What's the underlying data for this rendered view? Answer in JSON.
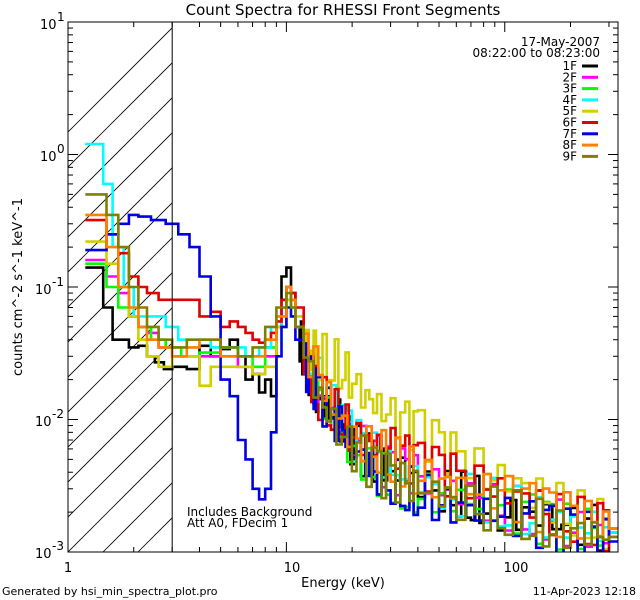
{
  "chart_data": {
    "type": "line",
    "title": "Count Spectra for RHESSI Front Segments",
    "xlabel": "Energy (keV)",
    "ylabel": "counts cm^-2 s^-1 keV^-1",
    "xscale": "log",
    "yscale": "log",
    "xlim": [
      1,
      330
    ],
    "ylim": [
      0.001,
      10
    ],
    "x_tick_labels": [
      "1",
      "10",
      "100"
    ],
    "y_tick_labels": [
      {
        "mantissa": "10",
        "exponent": "1"
      },
      {
        "mantissa": "10",
        "exponent": "0"
      },
      {
        "mantissa": "10",
        "exponent": "-1"
      },
      {
        "mantissa": "10",
        "exponent": "-2"
      },
      {
        "mantissa": "10",
        "exponent": "-3"
      }
    ],
    "hatched_region_keV": [
      1,
      3
    ],
    "annotation_date": "17-May-2007",
    "annotation_time": "08:22:00 to 08:23:00",
    "annotation_note1": "Includes Background",
    "annotation_note2": "Att A0, FDecim 1",
    "series": [
      {
        "name": "1F",
        "color": "#000000",
        "x": [
          1.2,
          1.3,
          1.45,
          1.6,
          1.75,
          1.9,
          2.1,
          2.3,
          2.5,
          2.75,
          3.0,
          3.5,
          4.0,
          4.5,
          5.0,
          5.5,
          6.0,
          6.5,
          7.0,
          7.5,
          8.0,
          8.5,
          9.0,
          9.5,
          10.0,
          10.5,
          11.0,
          11.5,
          12.0,
          13,
          14,
          15,
          17,
          19,
          21,
          24,
          27,
          30,
          35,
          40,
          50,
          60,
          70,
          80,
          100,
          120,
          150,
          200,
          250,
          300
        ],
        "values": [
          0.14,
          0.14,
          0.07,
          0.04,
          0.04,
          0.035,
          0.036,
          0.03,
          0.027,
          0.024,
          0.025,
          0.024,
          0.036,
          0.03,
          0.034,
          0.04,
          0.03,
          0.02,
          0.022,
          0.016,
          0.02,
          0.015,
          0.05,
          0.12,
          0.14,
          0.09,
          0.05,
          0.04,
          0.03,
          0.02,
          0.014,
          0.012,
          0.01,
          0.007,
          0.006,
          0.005,
          0.005,
          0.004,
          0.004,
          0.0035,
          0.003,
          0.0028,
          0.0025,
          0.0025,
          0.002,
          0.002,
          0.0018,
          0.0015,
          0.0015,
          0.0015
        ]
      },
      {
        "name": "2F",
        "color": "#ff00ff",
        "x": [
          1.2,
          1.35,
          1.5,
          1.7,
          1.9,
          2.1,
          2.3,
          2.6,
          3.0,
          3.5,
          4.0,
          5.0,
          6.0,
          7.0,
          8.0,
          9.0,
          9.5,
          10.0,
          10.5,
          11.0,
          12,
          14,
          16,
          19,
          22,
          26,
          30,
          35,
          40,
          50,
          60,
          80,
          100,
          130,
          160,
          200,
          250,
          300
        ],
        "values": [
          0.16,
          0.16,
          0.12,
          0.09,
          0.06,
          0.05,
          0.045,
          0.035,
          0.03,
          0.03,
          0.03,
          0.03,
          0.025,
          0.022,
          0.03,
          0.05,
          0.08,
          0.1,
          0.08,
          0.05,
          0.03,
          0.015,
          0.01,
          0.007,
          0.006,
          0.005,
          0.004,
          0.004,
          0.0035,
          0.003,
          0.003,
          0.0025,
          0.0022,
          0.002,
          0.0018,
          0.0016,
          0.0015,
          0.0014
        ]
      },
      {
        "name": "3F",
        "color": "#00ff00",
        "x": [
          1.2,
          1.35,
          1.5,
          1.7,
          1.9,
          2.1,
          2.4,
          2.8,
          3.3,
          4.0,
          5.0,
          6.0,
          7.0,
          8.0,
          9.0,
          10.0,
          10.5,
          11.0,
          12,
          14,
          16,
          19,
          22,
          26,
          30,
          35,
          40,
          50,
          60,
          80,
          100,
          130,
          160,
          200,
          250,
          300
        ],
        "values": [
          0.15,
          0.15,
          0.1,
          0.07,
          0.06,
          0.05,
          0.04,
          0.035,
          0.03,
          0.032,
          0.035,
          0.03,
          0.025,
          0.035,
          0.05,
          0.08,
          0.07,
          0.05,
          0.03,
          0.015,
          0.009,
          0.006,
          0.005,
          0.004,
          0.0035,
          0.003,
          0.003,
          0.0028,
          0.0025,
          0.0022,
          0.002,
          0.0018,
          0.0016,
          0.0015,
          0.0014,
          0.0013
        ]
      },
      {
        "name": "4F",
        "color": "#00ffff",
        "x": [
          1.2,
          1.3,
          1.45,
          1.6,
          1.8,
          2.0,
          2.2,
          2.5,
          2.8,
          3.2,
          3.8,
          4.5,
          5.5,
          6.5,
          7.5,
          8.5,
          9.5,
          10.0,
          10.5,
          11.0,
          12,
          14,
          16,
          19,
          22,
          26,
          30,
          40,
          50,
          60,
          80,
          100,
          130,
          160,
          200,
          250,
          300
        ],
        "values": [
          1.2,
          1.2,
          0.6,
          0.2,
          0.1,
          0.06,
          0.06,
          0.06,
          0.05,
          0.04,
          0.04,
          0.035,
          0.035,
          0.03,
          0.035,
          0.05,
          0.08,
          0.1,
          0.08,
          0.05,
          0.03,
          0.02,
          0.012,
          0.008,
          0.006,
          0.005,
          0.004,
          0.0035,
          0.003,
          0.0028,
          0.0025,
          0.0022,
          0.002,
          0.0018,
          0.0016,
          0.0015,
          0.0014
        ]
      },
      {
        "name": "5F",
        "color": "#d0d000",
        "x": [
          1.2,
          1.35,
          1.5,
          1.7,
          1.9,
          2.1,
          2.3,
          2.6,
          3.0,
          3.5,
          4.0,
          4.5,
          5.0,
          6.0,
          7.0,
          8.0,
          9.0,
          10.0,
          11.0,
          12,
          13,
          14,
          16,
          18,
          20,
          23,
          26,
          30,
          35,
          40,
          50,
          60,
          80,
          100,
          130,
          160,
          200,
          250,
          300
        ],
        "values": [
          0.22,
          0.22,
          0.15,
          0.1,
          0.06,
          0.04,
          0.03,
          0.025,
          0.03,
          0.03,
          0.018,
          0.025,
          0.025,
          0.025,
          0.022,
          0.025,
          0.05,
          0.08,
          0.06,
          0.04,
          0.035,
          0.03,
          0.028,
          0.025,
          0.02,
          0.015,
          0.012,
          0.01,
          0.009,
          0.008,
          0.006,
          0.005,
          0.004,
          0.0035,
          0.003,
          0.0025,
          0.002,
          0.0018,
          0.0015
        ]
      },
      {
        "name": "6F",
        "color": "#e00000",
        "x": [
          1.2,
          1.35,
          1.5,
          1.7,
          1.9,
          2.1,
          2.3,
          2.6,
          3.0,
          3.5,
          4.0,
          4.5,
          5.0,
          5.5,
          6.0,
          6.5,
          7.0,
          7.5,
          8.0,
          8.5,
          9.0,
          9.5,
          10.0,
          10.5,
          11.0,
          12,
          13,
          14,
          16,
          18,
          20,
          23,
          26,
          30,
          35,
          40,
          50,
          60,
          80,
          100,
          130,
          160,
          200,
          250,
          300
        ],
        "values": [
          0.32,
          0.32,
          0.25,
          0.18,
          0.12,
          0.1,
          0.09,
          0.08,
          0.08,
          0.08,
          0.06,
          0.065,
          0.05,
          0.055,
          0.05,
          0.045,
          0.04,
          0.038,
          0.04,
          0.045,
          0.055,
          0.08,
          0.1,
          0.09,
          0.07,
          0.03,
          0.02,
          0.015,
          0.012,
          0.01,
          0.008,
          0.007,
          0.006,
          0.006,
          0.005,
          0.0045,
          0.004,
          0.0035,
          0.003,
          0.0028,
          0.0025,
          0.002,
          0.0018,
          0.0016,
          0.0015
        ]
      },
      {
        "name": "7F",
        "color": "#0000e0",
        "x": [
          1.2,
          1.35,
          1.5,
          1.7,
          1.9,
          2.1,
          2.4,
          2.8,
          3.2,
          3.6,
          4.0,
          4.5,
          5.0,
          5.5,
          6.0,
          6.5,
          7.0,
          7.5,
          8.0,
          8.5,
          9.0,
          9.5,
          10.0,
          10.5,
          11.0,
          12,
          13,
          14,
          16,
          18,
          20,
          23,
          26,
          30,
          35,
          40,
          50,
          60,
          80,
          100,
          130,
          160,
          200,
          250,
          300
        ],
        "values": [
          0.19,
          0.19,
          0.25,
          0.3,
          0.35,
          0.34,
          0.32,
          0.3,
          0.25,
          0.2,
          0.12,
          0.06,
          0.02,
          0.015,
          0.007,
          0.005,
          0.003,
          0.0025,
          0.003,
          0.008,
          0.03,
          0.05,
          0.07,
          0.06,
          0.04,
          0.025,
          0.02,
          0.015,
          0.01,
          0.008,
          0.006,
          0.005,
          0.004,
          0.0035,
          0.003,
          0.0028,
          0.0025,
          0.0022,
          0.002,
          0.0018,
          0.0016,
          0.0015,
          0.0014,
          0.0013,
          0.0012
        ]
      },
      {
        "name": "8F",
        "color": "#ff8000",
        "x": [
          1.2,
          1.35,
          1.5,
          1.7,
          1.9,
          2.1,
          2.3,
          2.6,
          3.0,
          3.5,
          4.0,
          5.0,
          6.0,
          7.0,
          8.0,
          9.0,
          10.0,
          10.5,
          11.0,
          12,
          14,
          16,
          19,
          22,
          26,
          30,
          35,
          40,
          50,
          60,
          80,
          100,
          130,
          160,
          200,
          250,
          300
        ],
        "values": [
          0.35,
          0.35,
          0.2,
          0.1,
          0.07,
          0.05,
          0.04,
          0.035,
          0.03,
          0.035,
          0.04,
          0.03,
          0.03,
          0.03,
          0.04,
          0.06,
          0.1,
          0.08,
          0.05,
          0.035,
          0.02,
          0.012,
          0.008,
          0.007,
          0.006,
          0.005,
          0.0045,
          0.004,
          0.0035,
          0.003,
          0.0028,
          0.0025,
          0.0022,
          0.002,
          0.0018,
          0.0016,
          0.0015
        ]
      },
      {
        "name": "9F",
        "color": "#808000",
        "x": [
          1.2,
          1.35,
          1.5,
          1.7,
          1.9,
          2.1,
          2.3,
          2.6,
          3.0,
          3.5,
          4.0,
          5.0,
          6.0,
          7.0,
          8.0,
          9.0,
          10.0,
          10.5,
          11.0,
          12,
          14,
          16,
          19,
          22,
          26,
          30,
          35,
          40,
          50,
          60,
          80,
          100,
          130,
          160,
          200,
          250,
          300
        ],
        "values": [
          0.5,
          0.5,
          0.35,
          0.2,
          0.1,
          0.07,
          0.05,
          0.04,
          0.035,
          0.04,
          0.04,
          0.035,
          0.03,
          0.035,
          0.05,
          0.07,
          0.09,
          0.07,
          0.05,
          0.03,
          0.015,
          0.009,
          0.006,
          0.005,
          0.004,
          0.0035,
          0.003,
          0.003,
          0.0028,
          0.0025,
          0.0022,
          0.002,
          0.0018,
          0.0016,
          0.0015,
          0.0014,
          0.0013
        ]
      }
    ]
  },
  "footer": {
    "left": "Generated by hsi_min_spectra_plot.pro",
    "right": "11-Apr-2023 12:18"
  }
}
